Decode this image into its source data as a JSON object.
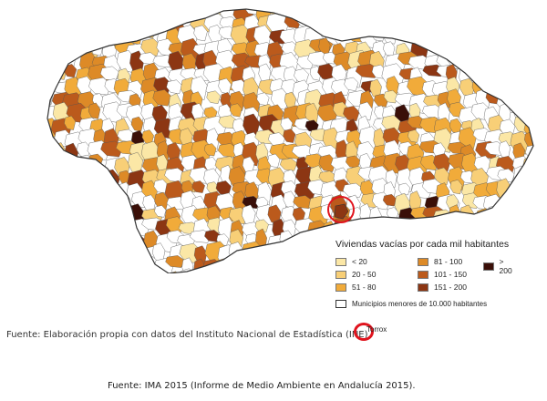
{
  "legend": {
    "title": "Viviendas vacías por cada mil habitantes",
    "items": [
      {
        "label": "< 20",
        "color": "#fbe7a6"
      },
      {
        "label": "20 - 50",
        "color": "#f8cf77"
      },
      {
        "label": "51 - 80",
        "color": "#f1ab3a"
      },
      {
        "label": "81 - 100",
        "color": "#dd8a27"
      },
      {
        "label": "101 - 150",
        "color": "#bb5a1c"
      },
      {
        "label": "151 - 200",
        "color": "#8c3613"
      },
      {
        "label": "> 200",
        "color": "#3a0f08"
      }
    ],
    "small_municipalities": "Municipios menores de 10.000 habitantes"
  },
  "annotation": {
    "place": "Torrox",
    "marker_color": "#e0141e"
  },
  "sources": {
    "line1": "Fuente: Elaboración propia con datos del Instituto Nacional de Estadística (INE).",
    "line2": "Fuente: IMA 2015 (Informe de Medio Ambiente en Andalucía 2015)."
  },
  "colors": {
    "boundary": "#555555",
    "no_data": "#ffffff"
  }
}
